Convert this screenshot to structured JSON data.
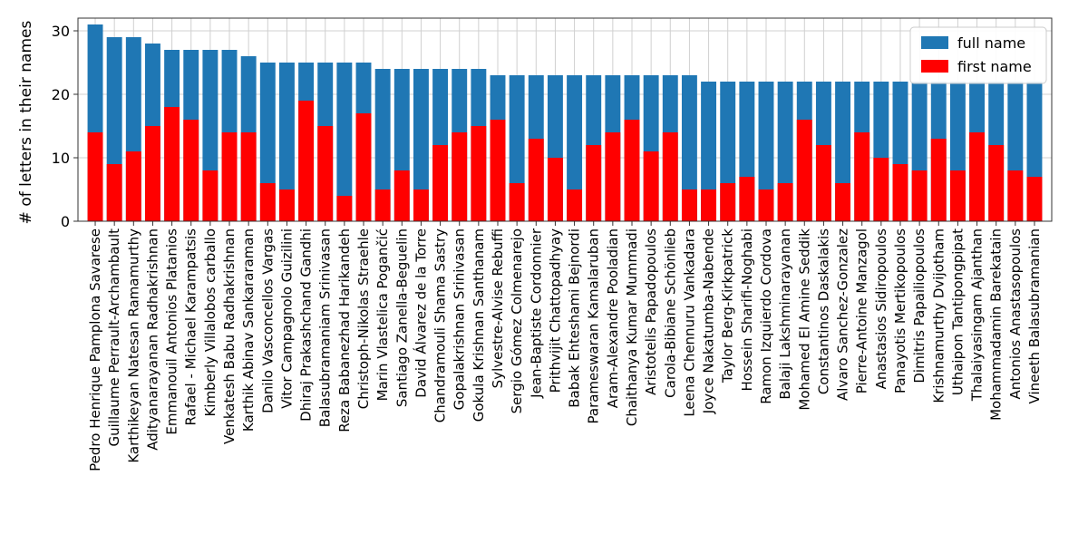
{
  "chart_data": {
    "type": "bar",
    "stacked": false,
    "overlay": true,
    "title": "",
    "xlabel": "",
    "ylabel": "# of letters in their names",
    "ylim": [
      0,
      32
    ],
    "yticks": [
      0,
      10,
      20,
      30
    ],
    "grid": true,
    "legend_position": "top-right",
    "categories": [
      "Pedro Henrique Pamplona Savarese",
      "Guillaume Perrault-Archambault",
      "Karthikeyan Natesan Ramamurthy",
      "Adityanarayanan Radhakrishnan",
      "Emmanouil Antonios Platanios",
      "Rafael - Michael Karampatsis",
      "Kimberly Villalobos carballo",
      "Venkatesh Babu Radhakrishnan",
      "Karthik Abinav Sankararaman",
      "Danilo Vasconcellos Vargas",
      "Vitor Campagnolo Guizilini",
      "Dhiraj Prakashchand Gandhi",
      "Balasubramaniam Srinivasan",
      "Reza Babanezhad Harikandeh",
      "Christoph-Nikolas Straehle",
      "Marin Vlastelica Pogančić",
      "Santiago Zanella-Beguelin",
      "David Álvarez de la Torre",
      "Chandramouli Shama Sastry",
      "Gopalakrishnan Srinivasan",
      "Gokula Krishnan Santhanam",
      "Sylvestre-Alvise Rebuffi",
      "Sergio Gómez Colmenarejo",
      "Jean-Baptiste Cordonnier",
      "Prithvijit Chattopadhyay",
      "Babak Ehteshami Bejnordi",
      "Parameswaran Kamalaruban",
      "Aram-Alexandre Pooladian",
      "Chaithanya Kumar Mummadi",
      "Aristotelis Papadopoulos",
      "Carola-Bibiane Schönlieb",
      "Leena Chennuru Vankadara",
      "Joyce Nakatumba-Nabende",
      "Taylor Berg-Kirkpatrick",
      "Hossein Sharifi-Noghabi",
      "Ramon Izquierdo Cordova",
      "Balaji Lakshminarayanan",
      "Mohamed El Amine Seddik",
      "Constantinos Daskalakis",
      "Alvaro Sanchez-Gonzalez",
      "Pierre-Antoine Manzagol",
      "Anastasios Sidiropoulos",
      "Panayotis Mertikopoulos",
      "Dimitris Papailiopoulos",
      "Krishnamurthy Dvijotham",
      "Uthaipon Tantipongpipat",
      "Thalaiyasingam Ajanthan",
      "Mohammadamin Barekatain",
      "Antonios Anastasopoulos",
      "Vineeth Balasubramanian"
    ],
    "series": [
      {
        "name": "full name",
        "color": "#1f77b4",
        "values": [
          31,
          29,
          29,
          28,
          27,
          27,
          27,
          27,
          26,
          25,
          25,
          25,
          25,
          25,
          25,
          24,
          24,
          24,
          24,
          24,
          24,
          23,
          23,
          23,
          23,
          23,
          23,
          23,
          23,
          23,
          23,
          23,
          22,
          22,
          22,
          22,
          22,
          22,
          22,
          22,
          22,
          22,
          22,
          22,
          22,
          22,
          22,
          22,
          22,
          22
        ]
      },
      {
        "name": "first name",
        "color": "#ff0000",
        "values": [
          14,
          9,
          11,
          15,
          18,
          16,
          8,
          14,
          14,
          6,
          5,
          19,
          15,
          4,
          17,
          5,
          8,
          5,
          12,
          14,
          15,
          16,
          6,
          13,
          10,
          5,
          12,
          14,
          16,
          11,
          14,
          5,
          5,
          6,
          7,
          5,
          6,
          16,
          12,
          6,
          14,
          10,
          9,
          8,
          13,
          8,
          14,
          12,
          8,
          7
        ]
      }
    ]
  }
}
